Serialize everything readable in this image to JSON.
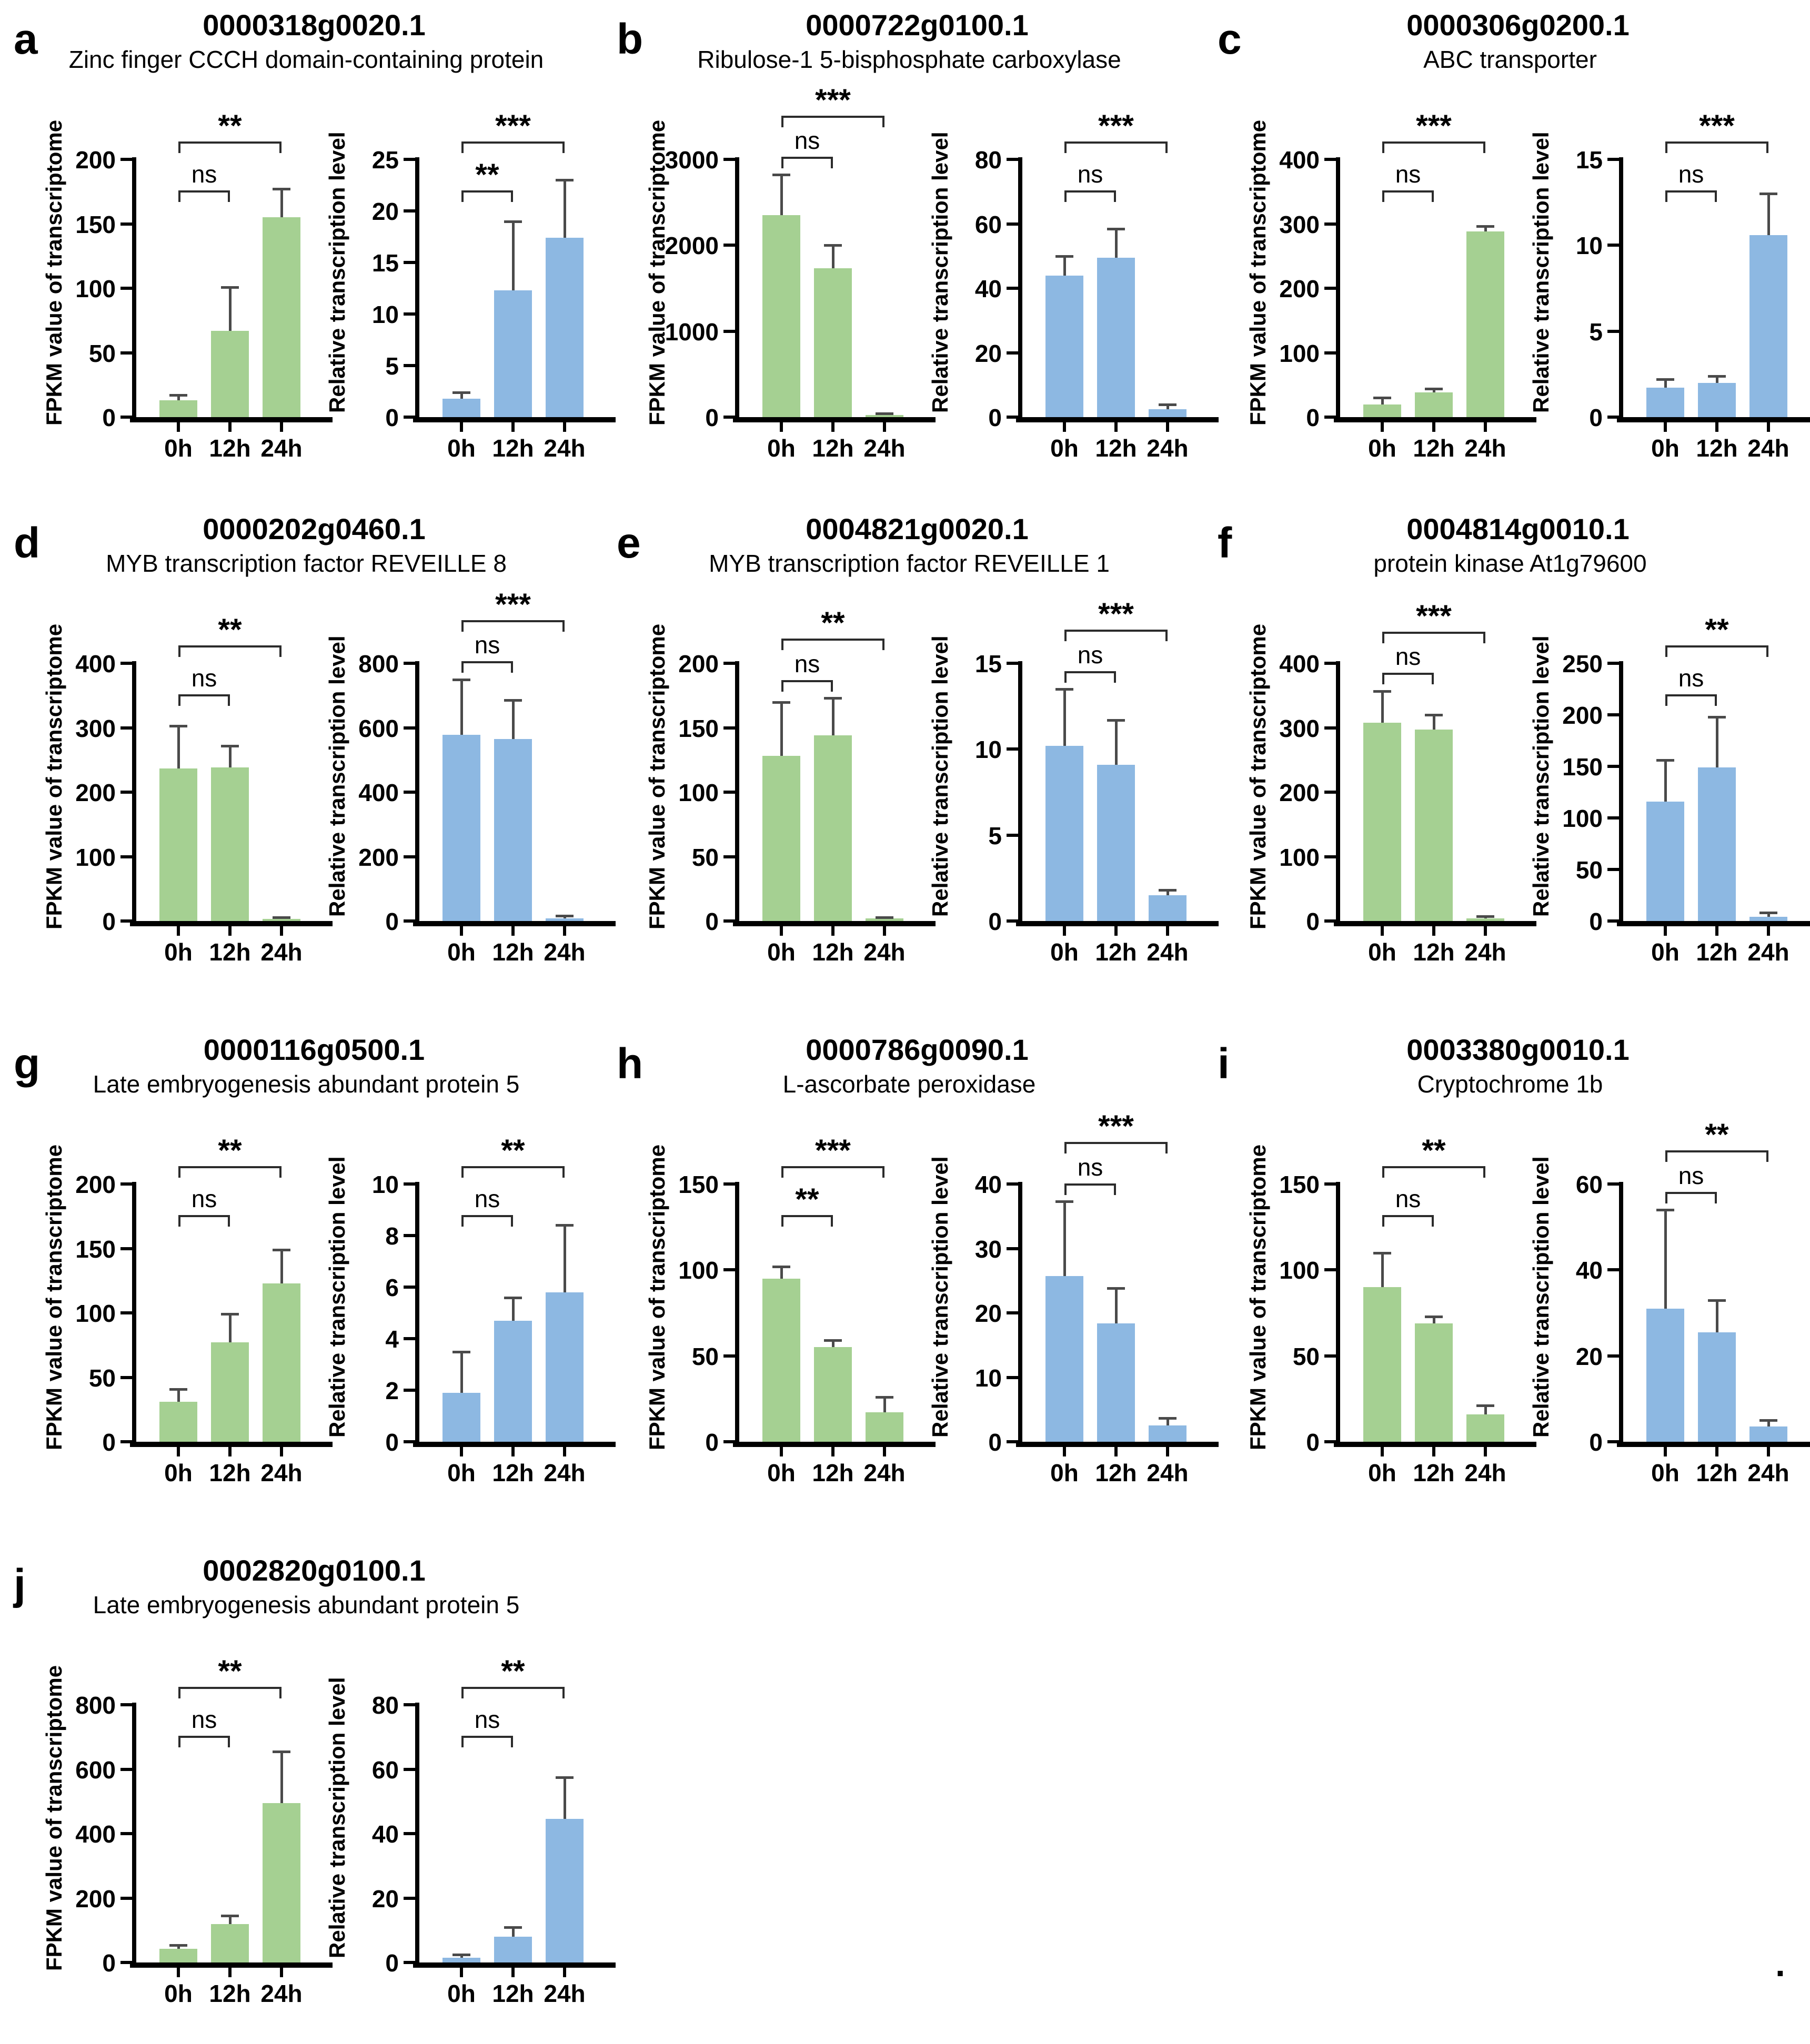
{
  "figure": {
    "trailing_period": ".",
    "categories": [
      "0h",
      "12h",
      "24h"
    ],
    "colors": {
      "green_bar": "#a5d092",
      "blue_bar": "#8db8e2",
      "error_bar": "#4a4a4a",
      "axis": "#000000",
      "bracket": "#2b2b2b",
      "text": "#000000",
      "background": "#ffffff"
    },
    "axis_labels": {
      "fpkm": "FPKM value of transcriptome",
      "relative": "Relative transcription level"
    }
  },
  "chart_data": [
    {
      "panel": "a",
      "gene_id": "0000318g0020.1",
      "gene_name": "Zinc finger CCCH domain-containing protein",
      "charts": [
        {
          "type": "bar",
          "ylabel": "FPKM value of transcriptome",
          "color": "#a5d092",
          "categories": [
            "0h",
            "12h",
            "24h"
          ],
          "values": [
            13,
            67,
            155
          ],
          "errors_plus": [
            4,
            34,
            22
          ],
          "ylim": [
            0,
            200
          ],
          "yticks": [
            0,
            50,
            100,
            150,
            200
          ],
          "significance": [
            {
              "compare": [
                "0h",
                "12h"
              ],
              "label": "ns"
            },
            {
              "compare": [
                "0h",
                "24h"
              ],
              "label": "**"
            }
          ]
        },
        {
          "type": "bar",
          "ylabel": "Relative transcription level",
          "color": "#8db8e2",
          "categories": [
            "0h",
            "12h",
            "24h"
          ],
          "values": [
            1.8,
            12.3,
            17.4
          ],
          "errors_plus": [
            0.6,
            6.7,
            5.6
          ],
          "ylim": [
            0,
            25
          ],
          "yticks": [
            0,
            5,
            10,
            15,
            20,
            25
          ],
          "significance": [
            {
              "compare": [
                "0h",
                "12h"
              ],
              "label": "**"
            },
            {
              "compare": [
                "0h",
                "24h"
              ],
              "label": "***"
            }
          ]
        }
      ]
    },
    {
      "panel": "b",
      "gene_id": "0000722g0100.1",
      "gene_name": "Ribulose-1 5-bisphosphate carboxylase",
      "charts": [
        {
          "type": "bar",
          "ylabel": "FPKM value of transcriptome",
          "color": "#a5d092",
          "categories": [
            "0h",
            "12h",
            "24h"
          ],
          "values": [
            2350,
            1730,
            25
          ],
          "errors_plus": [
            470,
            270,
            15
          ],
          "ylim": [
            0,
            3000
          ],
          "yticks": [
            0,
            1000,
            2000,
            3000
          ],
          "significance": [
            {
              "compare": [
                "0h",
                "12h"
              ],
              "label": "ns"
            },
            {
              "compare": [
                "0h",
                "24h"
              ],
              "label": "***"
            }
          ]
        },
        {
          "type": "bar",
          "ylabel": "Relative transcription level",
          "color": "#8db8e2",
          "categories": [
            "0h",
            "12h",
            "24h"
          ],
          "values": [
            44,
            49.5,
            2.5
          ],
          "errors_plus": [
            6,
            9,
            1.5
          ],
          "ylim": [
            0,
            80
          ],
          "yticks": [
            0,
            20,
            40,
            60,
            80
          ],
          "significance": [
            {
              "compare": [
                "0h",
                "12h"
              ],
              "label": "ns"
            },
            {
              "compare": [
                "0h",
                "24h"
              ],
              "label": "***"
            }
          ]
        }
      ]
    },
    {
      "panel": "c",
      "gene_id": "0000306g0200.1",
      "gene_name": "ABC transporter",
      "charts": [
        {
          "type": "bar",
          "ylabel": "FPKM value of transcriptome",
          "color": "#a5d092",
          "categories": [
            "0h",
            "12h",
            "24h"
          ],
          "values": [
            20,
            38,
            288
          ],
          "errors_plus": [
            10,
            6,
            8
          ],
          "ylim": [
            0,
            400
          ],
          "yticks": [
            0,
            100,
            200,
            300,
            400
          ],
          "significance": [
            {
              "compare": [
                "0h",
                "12h"
              ],
              "label": "ns"
            },
            {
              "compare": [
                "0h",
                "24h"
              ],
              "label": "***"
            }
          ]
        },
        {
          "type": "bar",
          "ylabel": "Relative transcription level",
          "color": "#8db8e2",
          "categories": [
            "0h",
            "12h",
            "24h"
          ],
          "values": [
            1.7,
            2.0,
            10.6
          ],
          "errors_plus": [
            0.5,
            0.4,
            2.4
          ],
          "ylim": [
            0,
            15
          ],
          "yticks": [
            0,
            5,
            10,
            15
          ],
          "significance": [
            {
              "compare": [
                "0h",
                "12h"
              ],
              "label": "ns"
            },
            {
              "compare": [
                "0h",
                "24h"
              ],
              "label": "***"
            }
          ]
        }
      ]
    },
    {
      "panel": "d",
      "gene_id": "0000202g0460.1",
      "gene_name": "MYB transcription factor REVEILLE 8",
      "charts": [
        {
          "type": "bar",
          "ylabel": "FPKM value of transcriptome",
          "color": "#a5d092",
          "categories": [
            "0h",
            "12h",
            "24h"
          ],
          "values": [
            237,
            238,
            3
          ],
          "errors_plus": [
            66,
            34,
            3
          ],
          "ylim": [
            0,
            400
          ],
          "yticks": [
            0,
            100,
            200,
            300,
            400
          ],
          "significance": [
            {
              "compare": [
                "0h",
                "12h"
              ],
              "label": "ns"
            },
            {
              "compare": [
                "0h",
                "24h"
              ],
              "label": "**"
            }
          ]
        },
        {
          "type": "bar",
          "ylabel": "Relative transcription level",
          "color": "#8db8e2",
          "categories": [
            "0h",
            "12h",
            "24h"
          ],
          "values": [
            578,
            565,
            8
          ],
          "errors_plus": [
            172,
            120,
            8
          ],
          "ylim": [
            0,
            800
          ],
          "yticks": [
            0,
            200,
            400,
            600,
            800
          ],
          "significance": [
            {
              "compare": [
                "0h",
                "12h"
              ],
              "label": "ns"
            },
            {
              "compare": [
                "0h",
                "24h"
              ],
              "label": "***"
            }
          ]
        }
      ]
    },
    {
      "panel": "e",
      "gene_id": "0004821g0020.1",
      "gene_name": "MYB transcription factor REVEILLE 1",
      "charts": [
        {
          "type": "bar",
          "ylabel": "FPKM value of transcriptome",
          "color": "#a5d092",
          "categories": [
            "0h",
            "12h",
            "24h"
          ],
          "values": [
            128,
            144,
            2
          ],
          "errors_plus": [
            42,
            29,
            1
          ],
          "ylim": [
            0,
            200
          ],
          "yticks": [
            0,
            50,
            100,
            150,
            200
          ],
          "significance": [
            {
              "compare": [
                "0h",
                "12h"
              ],
              "label": "ns"
            },
            {
              "compare": [
                "0h",
                "24h"
              ],
              "label": "**"
            }
          ]
        },
        {
          "type": "bar",
          "ylabel": "Relative transcription level",
          "color": "#8db8e2",
          "categories": [
            "0h",
            "12h",
            "24h"
          ],
          "values": [
            10.2,
            9.1,
            1.5
          ],
          "errors_plus": [
            3.3,
            2.6,
            0.3
          ],
          "ylim": [
            0,
            15
          ],
          "yticks": [
            0,
            5,
            10,
            15
          ],
          "significance": [
            {
              "compare": [
                "0h",
                "12h"
              ],
              "label": "ns"
            },
            {
              "compare": [
                "0h",
                "24h"
              ],
              "label": "***"
            }
          ]
        }
      ]
    },
    {
      "panel": "f",
      "gene_id": "0004814g0010.1",
      "gene_name": "protein kinase At1g79600",
      "charts": [
        {
          "type": "bar",
          "ylabel": "FPKM value of transcriptome",
          "color": "#a5d092",
          "categories": [
            "0h",
            "12h",
            "24h"
          ],
          "values": [
            308,
            297,
            4
          ],
          "errors_plus": [
            49,
            23,
            3
          ],
          "ylim": [
            0,
            400
          ],
          "yticks": [
            0,
            100,
            200,
            300,
            400
          ],
          "significance": [
            {
              "compare": [
                "0h",
                "12h"
              ],
              "label": "ns"
            },
            {
              "compare": [
                "0h",
                "24h"
              ],
              "label": "***"
            }
          ]
        },
        {
          "type": "bar",
          "ylabel": "Relative transcription level",
          "color": "#8db8e2",
          "categories": [
            "0h",
            "12h",
            "24h"
          ],
          "values": [
            116,
            149,
            4
          ],
          "errors_plus": [
            40,
            49,
            4
          ],
          "ylim": [
            0,
            250
          ],
          "yticks": [
            0,
            50,
            100,
            150,
            200,
            250
          ],
          "significance": [
            {
              "compare": [
                "0h",
                "12h"
              ],
              "label": "ns"
            },
            {
              "compare": [
                "0h",
                "24h"
              ],
              "label": "**"
            }
          ]
        }
      ]
    },
    {
      "panel": "g",
      "gene_id": "0000116g0500.1",
      "gene_name": "Late embryogenesis abundant protein 5",
      "charts": [
        {
          "type": "bar",
          "ylabel": "FPKM value of transcriptome",
          "color": "#a5d092",
          "categories": [
            "0h",
            "12h",
            "24h"
          ],
          "values": [
            31,
            77,
            123
          ],
          "errors_plus": [
            10,
            22,
            26
          ],
          "ylim": [
            0,
            200
          ],
          "yticks": [
            0,
            50,
            100,
            150,
            200
          ],
          "significance": [
            {
              "compare": [
                "0h",
                "12h"
              ],
              "label": "ns"
            },
            {
              "compare": [
                "0h",
                "24h"
              ],
              "label": "**"
            }
          ]
        },
        {
          "type": "bar",
          "ylabel": "Relative transcription level",
          "color": "#8db8e2",
          "categories": [
            "0h",
            "12h",
            "24h"
          ],
          "values": [
            1.9,
            4.7,
            5.8
          ],
          "errors_plus": [
            1.6,
            0.9,
            2.6
          ],
          "ylim": [
            0,
            10
          ],
          "yticks": [
            0,
            2,
            4,
            6,
            8,
            10
          ],
          "significance": [
            {
              "compare": [
                "0h",
                "12h"
              ],
              "label": "ns"
            },
            {
              "compare": [
                "0h",
                "24h"
              ],
              "label": "**"
            }
          ]
        }
      ]
    },
    {
      "panel": "h",
      "gene_id": "0000786g0090.1",
      "gene_name": "L-ascorbate peroxidase",
      "charts": [
        {
          "type": "bar",
          "ylabel": "FPKM value of transcriptome",
          "color": "#a5d092",
          "categories": [
            "0h",
            "12h",
            "24h"
          ],
          "values": [
            95,
            55,
            17
          ],
          "errors_plus": [
            7,
            4,
            9
          ],
          "ylim": [
            0,
            150
          ],
          "yticks": [
            0,
            50,
            100,
            150
          ],
          "significance": [
            {
              "compare": [
                "0h",
                "12h"
              ],
              "label": "**"
            },
            {
              "compare": [
                "0h",
                "24h"
              ],
              "label": "***"
            }
          ]
        },
        {
          "type": "bar",
          "ylabel": "Relative transcription level",
          "color": "#8db8e2",
          "categories": [
            "0h",
            "12h",
            "24h"
          ],
          "values": [
            25.7,
            18.4,
            2.5
          ],
          "errors_plus": [
            11.6,
            5.4,
            1.2
          ],
          "ylim": [
            0,
            40
          ],
          "yticks": [
            0,
            10,
            20,
            30,
            40
          ],
          "significance": [
            {
              "compare": [
                "0h",
                "12h"
              ],
              "label": "ns"
            },
            {
              "compare": [
                "0h",
                "24h"
              ],
              "label": "***"
            }
          ]
        }
      ]
    },
    {
      "panel": "i",
      "gene_id": "0003380g0010.1",
      "gene_name": "Cryptochrome 1b",
      "charts": [
        {
          "type": "bar",
          "ylabel": "FPKM value of transcriptome",
          "color": "#a5d092",
          "categories": [
            "0h",
            "12h",
            "24h"
          ],
          "values": [
            90,
            69,
            16
          ],
          "errors_plus": [
            20,
            4,
            5
          ],
          "ylim": [
            0,
            150
          ],
          "yticks": [
            0,
            50,
            100,
            150
          ],
          "significance": [
            {
              "compare": [
                "0h",
                "12h"
              ],
              "label": "ns"
            },
            {
              "compare": [
                "0h",
                "24h"
              ],
              "label": "**"
            }
          ]
        },
        {
          "type": "bar",
          "ylabel": "Relative transcription level",
          "color": "#8db8e2",
          "categories": [
            "0h",
            "12h",
            "24h"
          ],
          "values": [
            31,
            25.5,
            3.5
          ],
          "errors_plus": [
            23,
            7.5,
            1.5
          ],
          "ylim": [
            0,
            60
          ],
          "yticks": [
            0,
            20,
            40,
            60
          ],
          "significance": [
            {
              "compare": [
                "0h",
                "12h"
              ],
              "label": "ns"
            },
            {
              "compare": [
                "0h",
                "24h"
              ],
              "label": "**"
            }
          ]
        }
      ]
    },
    {
      "panel": "j",
      "gene_id": "0002820g0100.1",
      "gene_name": "Late embryogenesis abundant protein 5",
      "charts": [
        {
          "type": "bar",
          "ylabel": "FPKM value of transcriptome",
          "color": "#a5d092",
          "categories": [
            "0h",
            "12h",
            "24h"
          ],
          "values": [
            42,
            120,
            495
          ],
          "errors_plus": [
            12,
            25,
            160
          ],
          "ylim": [
            0,
            800
          ],
          "yticks": [
            0,
            200,
            400,
            600,
            800
          ],
          "significance": [
            {
              "compare": [
                "0h",
                "12h"
              ],
              "label": "ns"
            },
            {
              "compare": [
                "0h",
                "24h"
              ],
              "label": "**"
            }
          ]
        },
        {
          "type": "bar",
          "ylabel": "Relative transcription level",
          "color": "#8db8e2",
          "categories": [
            "0h",
            "12h",
            "24h"
          ],
          "values": [
            1.5,
            8,
            44.5
          ],
          "errors_plus": [
            1,
            3,
            13
          ],
          "ylim": [
            0,
            80
          ],
          "yticks": [
            0,
            20,
            40,
            60,
            80
          ],
          "significance": [
            {
              "compare": [
                "0h",
                "12h"
              ],
              "label": "ns"
            },
            {
              "compare": [
                "0h",
                "24h"
              ],
              "label": "**"
            }
          ]
        }
      ]
    }
  ]
}
